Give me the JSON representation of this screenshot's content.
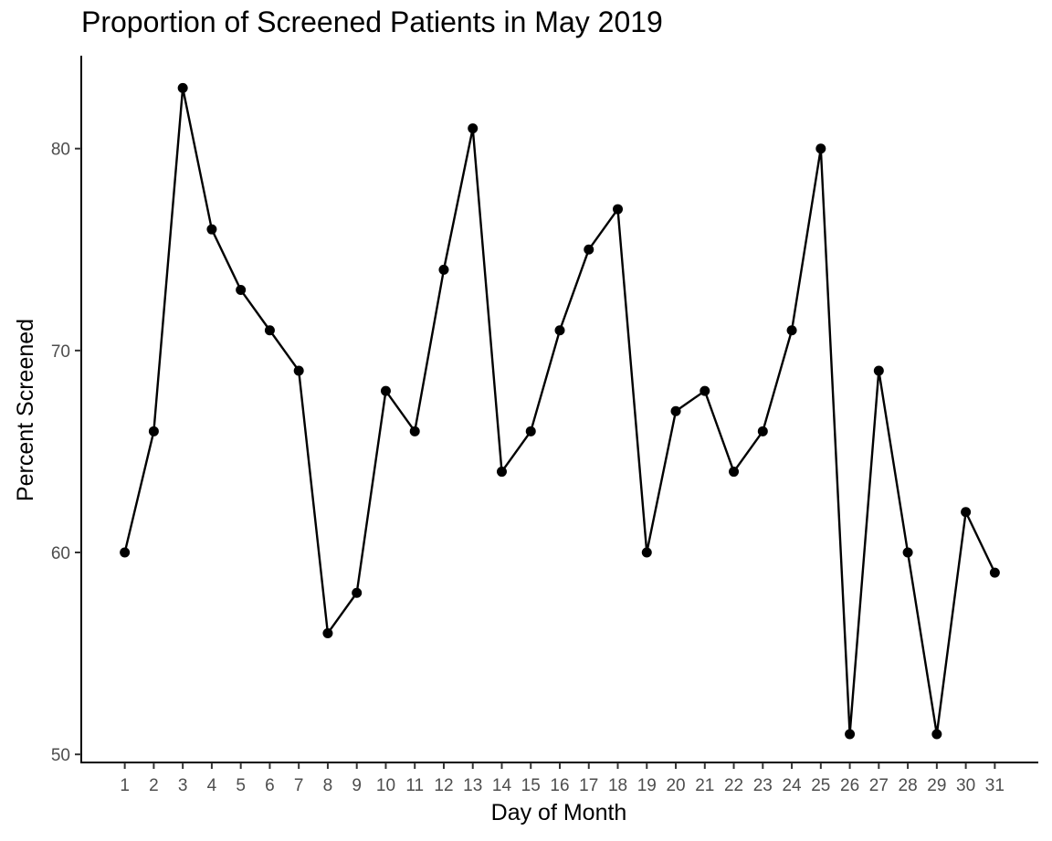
{
  "chart_data": {
    "type": "line",
    "title": "Proportion of Screened Patients in May 2019",
    "xlabel": "Day of Month",
    "ylabel": "Percent Screened",
    "x": [
      1,
      2,
      3,
      4,
      5,
      6,
      7,
      8,
      9,
      10,
      11,
      12,
      13,
      14,
      15,
      16,
      17,
      18,
      19,
      20,
      21,
      22,
      23,
      24,
      25,
      26,
      27,
      28,
      29,
      30,
      31
    ],
    "series": [
      {
        "values": [
          60,
          66,
          83,
          76,
          73,
          71,
          69,
          56,
          58,
          68,
          66,
          74,
          81,
          64,
          66,
          71,
          75,
          77,
          60,
          67,
          68,
          64,
          66,
          71,
          80,
          51,
          69,
          60,
          51,
          62,
          59
        ]
      }
    ],
    "y_ticks": [
      50,
      60,
      70,
      80
    ],
    "ylim": [
      49.6,
      84.6
    ],
    "xlim": [
      -0.5,
      32.5
    ],
    "grid": false,
    "legend": "none",
    "colors": {
      "line": "#000000",
      "point": "#000000",
      "axis": "#000000",
      "tick_label": "#4d4d4d"
    }
  }
}
